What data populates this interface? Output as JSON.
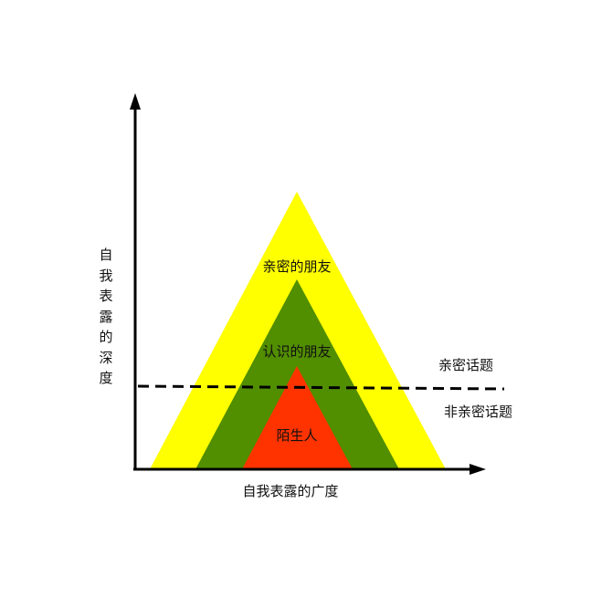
{
  "colors": {
    "outer_layer": "#ffff00",
    "middle_layer": "#518e00",
    "inner_layer": "#ff3300",
    "axis": "#000000",
    "divider": "#000000"
  },
  "layers": {
    "outer": "亲密的朋友",
    "middle": "认识的朋友",
    "inner": "陌生人"
  },
  "axes": {
    "x_label": "自我表露的广度",
    "y_label": "自我表露的深度"
  },
  "divider": {
    "above": "亲密话题",
    "below": "非亲密话题"
  }
}
